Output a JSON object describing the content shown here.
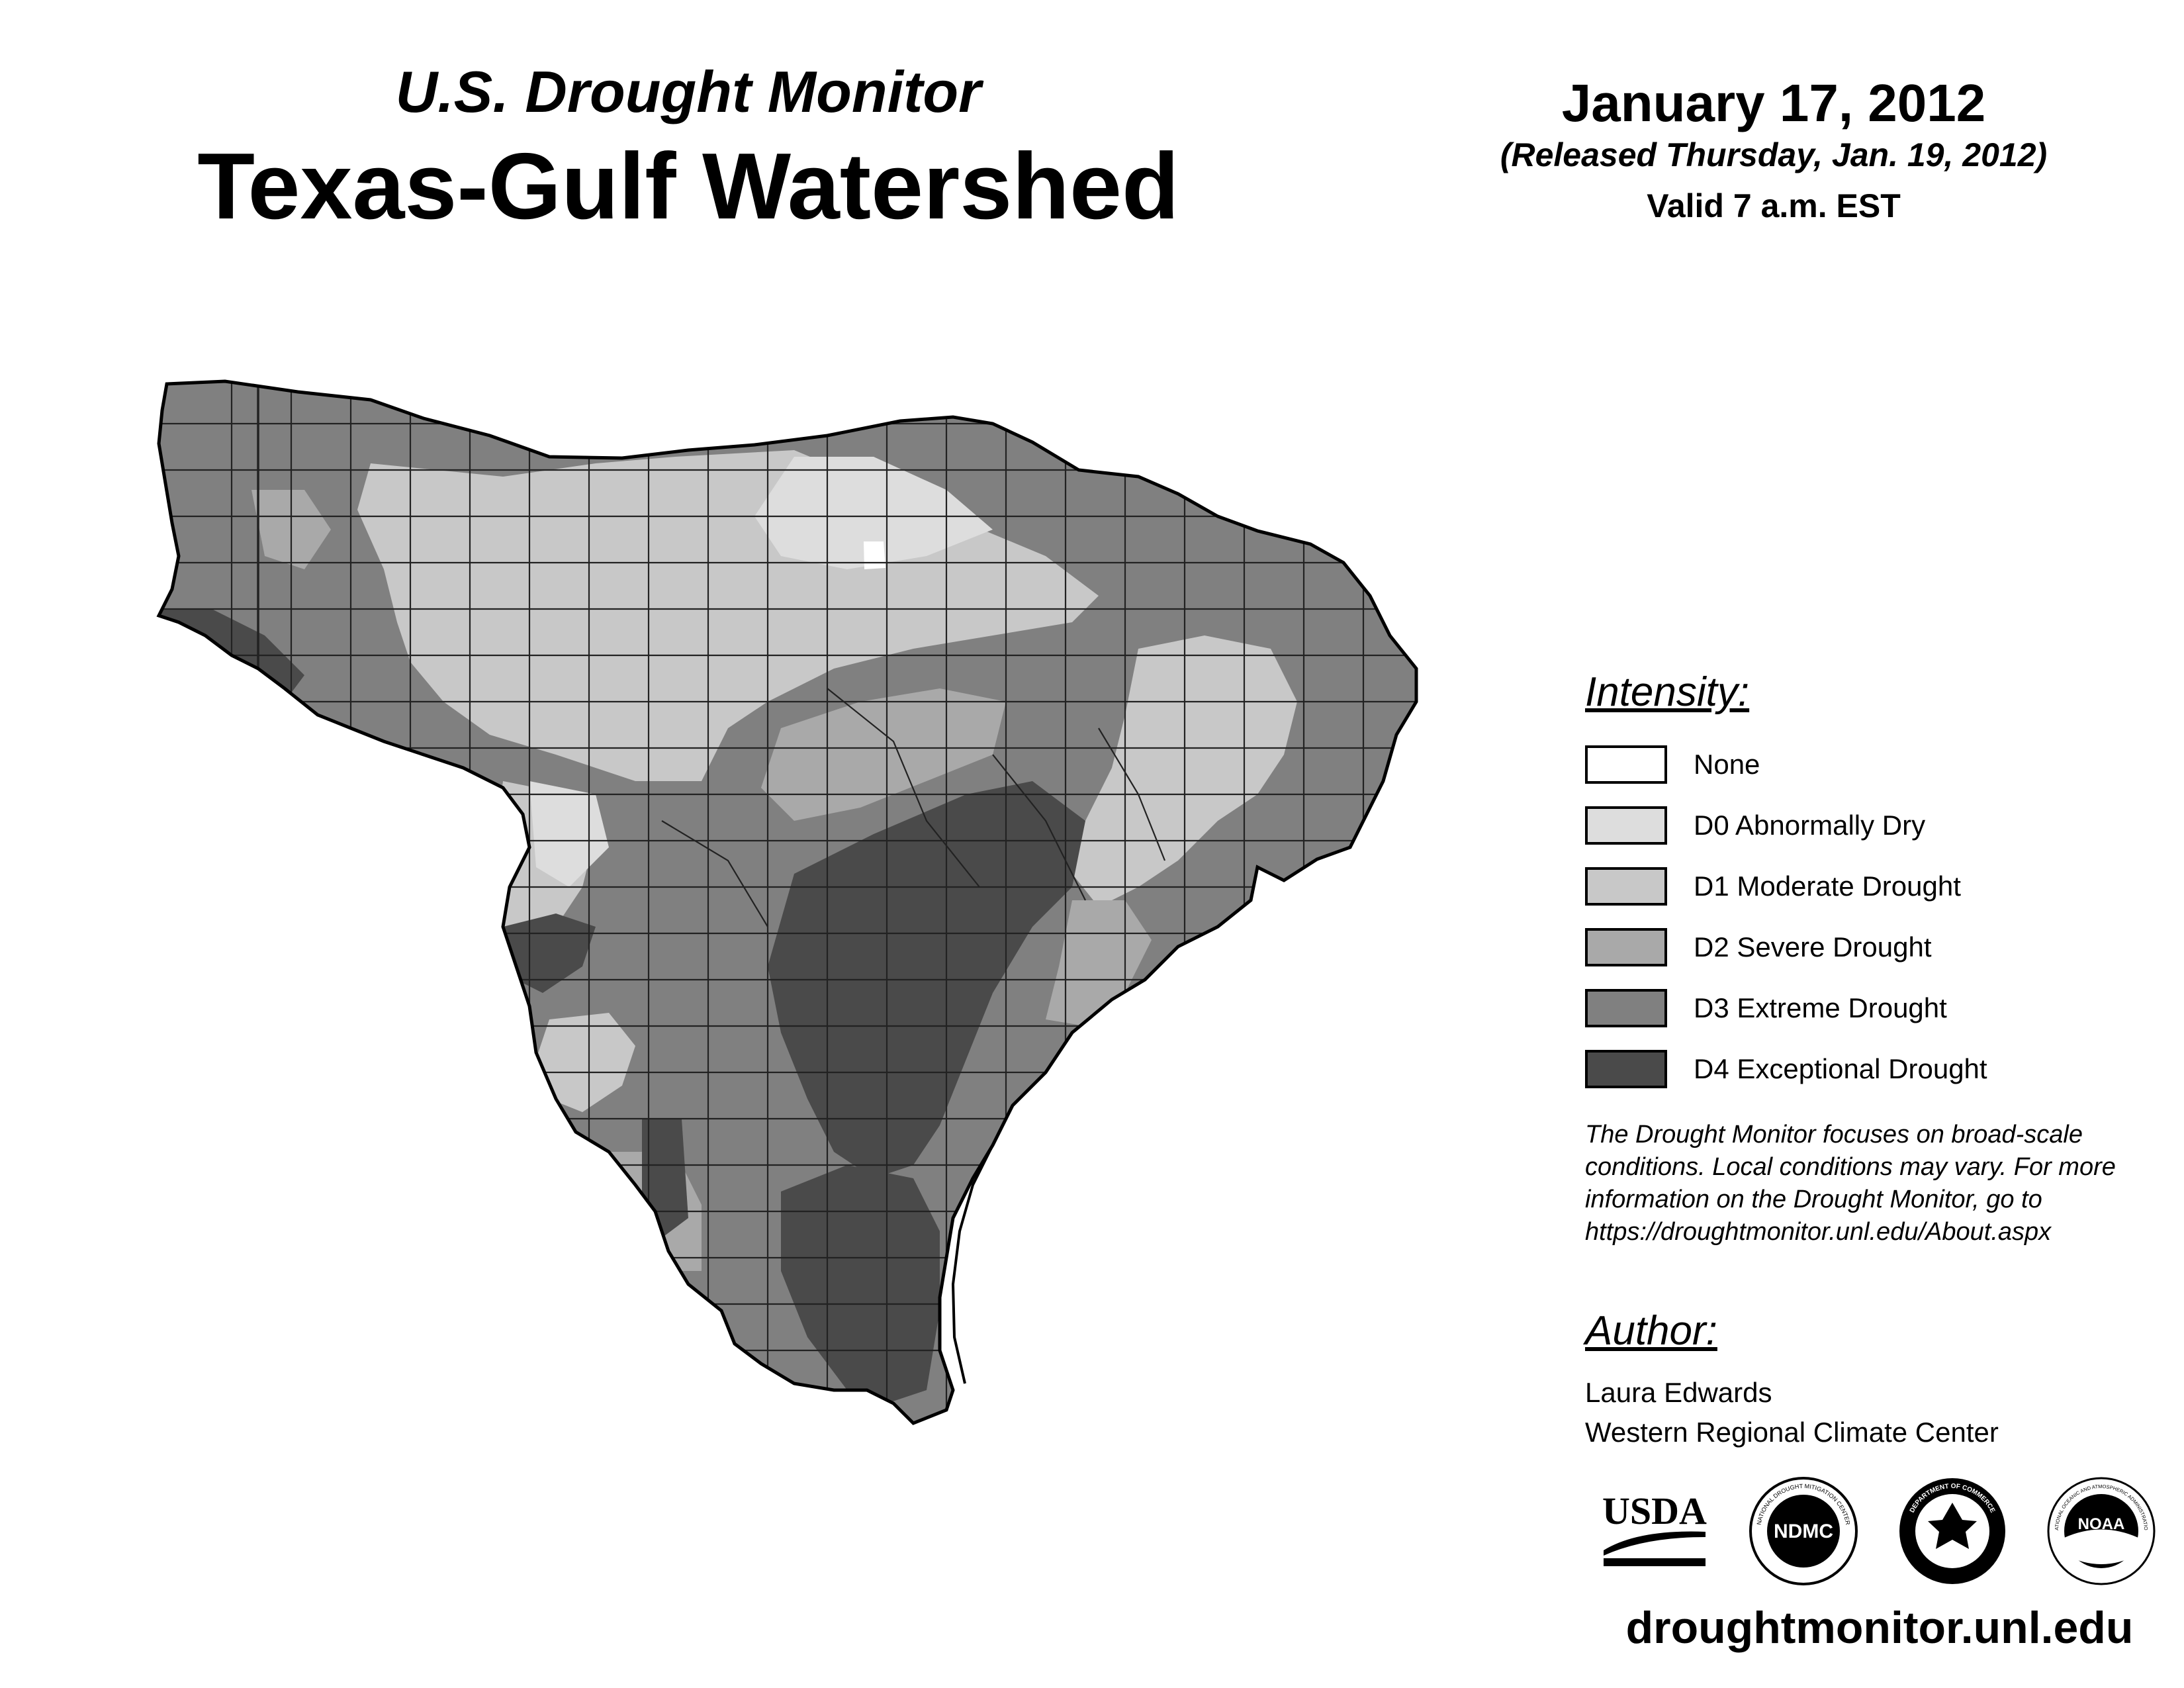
{
  "header": {
    "subtitle": "U.S. Drought Monitor",
    "title": "Texas-Gulf Watershed",
    "date": "January 17, 2012",
    "released": "(Released Thursday, Jan. 19, 2012)",
    "valid": "Valid 7 a.m. EST"
  },
  "legend": {
    "heading": "Intensity:",
    "items": [
      {
        "label": "None",
        "color": "#ffffff"
      },
      {
        "label": "D0 Abnormally Dry",
        "color": "#dddddd"
      },
      {
        "label": "D1 Moderate Drought",
        "color": "#c8c8c8"
      },
      {
        "label": "D2 Severe Drought",
        "color": "#a9a9a9"
      },
      {
        "label": "D3 Extreme Drought",
        "color": "#808080"
      },
      {
        "label": "D4 Exceptional Drought",
        "color": "#4a4a4a"
      }
    ]
  },
  "disclaimer": {
    "lines": [
      "The Drought Monitor focuses on broad-scale",
      "conditions. Local conditions may vary. For more",
      "information on the Drought Monitor, go to",
      "https://droughtmonitor.unl.edu/About.aspx"
    ]
  },
  "author": {
    "heading": "Author:",
    "name": "Laura Edwards",
    "org": "Western Regional Climate Center"
  },
  "logos": {
    "usda": "USDA",
    "ndmc": "NDMC",
    "ndmc_ring": "NATIONAL DROUGHT MITIGATION CENTER",
    "doc_ring": "DEPARTMENT OF COMMERCE",
    "noaa": "NOAA",
    "noaa_ring": "NATIONAL OCEANIC AND ATMOSPHERIC ADMINISTRATION"
  },
  "footer": {
    "url": "droughtmonitor.unl.edu"
  }
}
